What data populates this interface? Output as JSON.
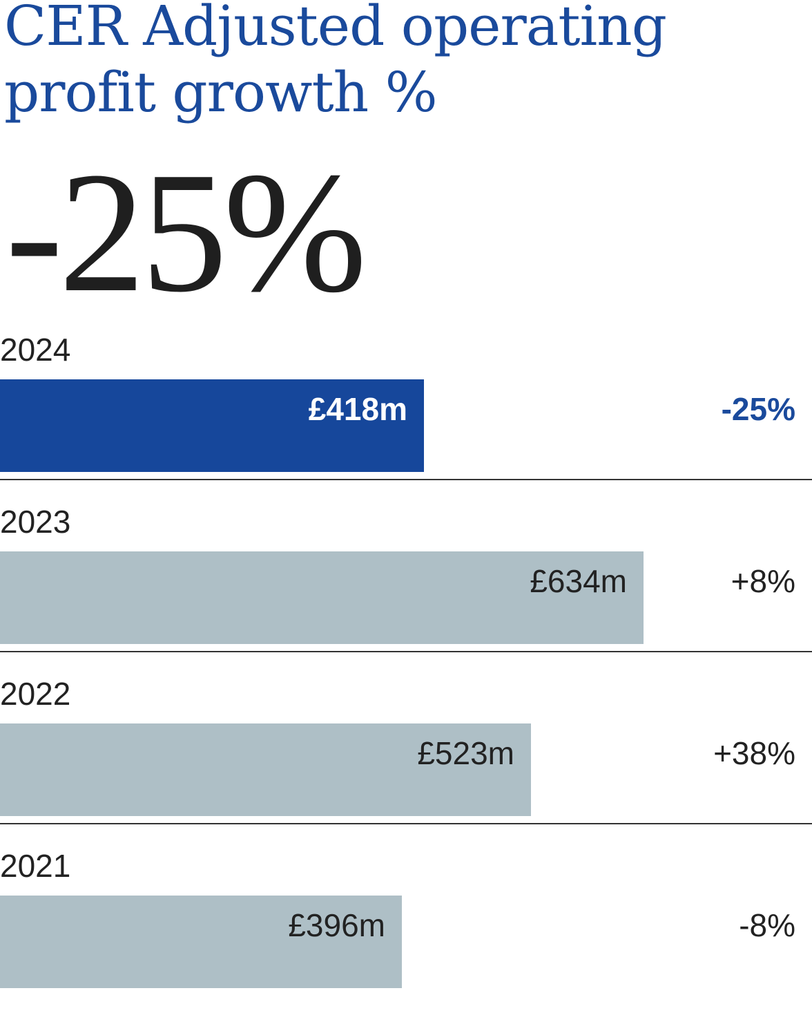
{
  "title": "CER Adjusted operating profit growth %",
  "headline_value": "-25%",
  "colors": {
    "highlight_bar": "#16479b",
    "other_bar": "#aebfc6",
    "highlight_text": "#1a4a9c",
    "divider": "#333333"
  },
  "chart_data": {
    "type": "bar",
    "orientation": "horizontal",
    "title": "CER Adjusted operating profit growth %",
    "categories": [
      "2024",
      "2023",
      "2022",
      "2021"
    ],
    "values": [
      418,
      634,
      523,
      396
    ],
    "value_labels": [
      "£418m",
      "£634m",
      "£523m",
      "£396m"
    ],
    "growth_labels": [
      "-25%",
      "+8%",
      "+38%",
      "-8%"
    ],
    "highlight_index": 0,
    "xlim": [
      0,
      800
    ]
  }
}
